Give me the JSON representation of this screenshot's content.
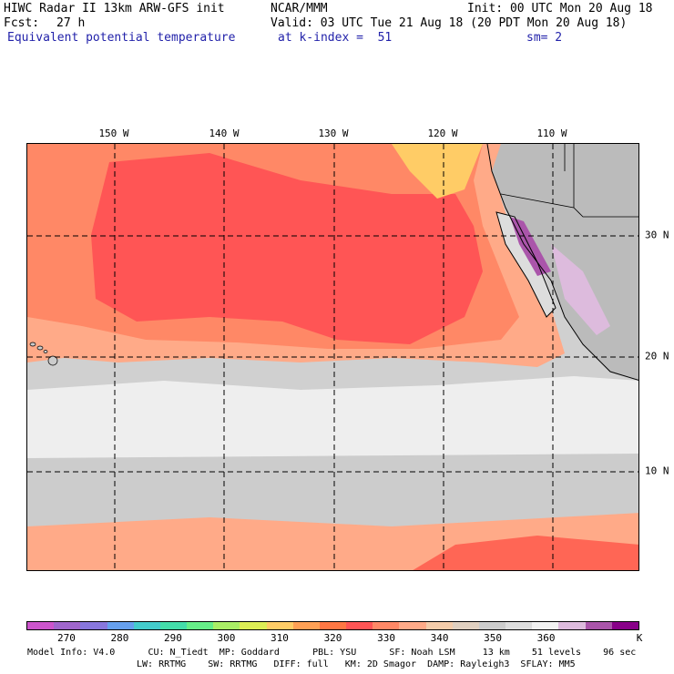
{
  "header": {
    "title_left": "HIWC Radar II 13km ARW-GFS init",
    "title_mid": "NCAR/MMM",
    "init": "Init: 00 UTC Mon 20 Aug 18",
    "fcst_label": "Fcst:",
    "fcst_value": "27 h",
    "valid": "Valid: 03 UTC Tue 21 Aug 18 (20 PDT Mon 20 Aug 18)",
    "field": "Equivalent potential temperature",
    "level": "at k-index =  51",
    "smoothing": "sm= 2"
  },
  "map": {
    "lon_labels": [
      "150 W",
      "140 W",
      "130 W",
      "120 W",
      "110 W"
    ],
    "lat_labels": [
      "30 N",
      "20 N",
      "10 N"
    ]
  },
  "colorbar": {
    "colors": [
      "#cc55cc",
      "#a066cc",
      "#8877dd",
      "#66a0ee",
      "#44cccc",
      "#44ddaa",
      "#66ee88",
      "#aaee66",
      "#ddee55",
      "#ffcc66",
      "#ffa055",
      "#ff7744",
      "#ff5555",
      "#ff8866",
      "#ffaa88",
      "#f4ccaa",
      "#e0d0c0",
      "#cccccc",
      "#dddddd",
      "#f2f2f2",
      "#ddbbdd",
      "#aa55aa",
      "#880088"
    ],
    "labels": [
      "270",
      "280",
      "290",
      "300",
      "310",
      "320",
      "330",
      "340",
      "350",
      "360"
    ],
    "unit": "K"
  },
  "model_info": {
    "line1": "Model Info: V4.0      CU: N_Tiedt  MP: Goddard      PBL: YSU      SF: Noah LSM     13 km    51 levels    96 sec",
    "line2": "LW: RRTMG    SW: RRTMG   DIFF: full   KM: 2D Smagor  DAMP: Rayleigh3  SFLAY: MM5"
  }
}
